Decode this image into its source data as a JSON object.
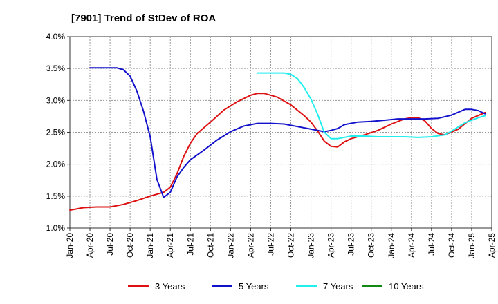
{
  "chart_data": {
    "type": "line",
    "title": "[7901]  Trend of StDev of ROA",
    "xlabel": "",
    "ylabel": "",
    "ylim": [
      1.0,
      4.0
    ],
    "yticks": [
      "1.0%",
      "1.5%",
      "2.0%",
      "2.5%",
      "3.0%",
      "3.5%",
      "4.0%"
    ],
    "xticks": [
      "Jan-20",
      "Apr-20",
      "Jul-20",
      "Oct-20",
      "Jan-21",
      "Apr-21",
      "Jul-21",
      "Oct-21",
      "Jan-22",
      "Apr-22",
      "Jul-22",
      "Oct-22",
      "Jan-23",
      "Apr-23",
      "Jul-23",
      "Oct-23",
      "Jan-24",
      "Apr-24",
      "Jul-24",
      "Oct-24",
      "Jan-25",
      "Apr-25"
    ],
    "grid": true,
    "legend_position": "bottom",
    "series": [
      {
        "name": "3 Years",
        "color": "#dd1111",
        "points": [
          [
            "Jan-20",
            1.28
          ],
          [
            "Mar-20",
            1.32
          ],
          [
            "May-20",
            1.33
          ],
          [
            "Jul-20",
            1.33
          ],
          [
            "Sep-20",
            1.37
          ],
          [
            "Nov-20",
            1.43
          ],
          [
            "Jan-21",
            1.5
          ],
          [
            "Mar-21",
            1.56
          ],
          [
            "Apr-21",
            1.64
          ],
          [
            "May-21",
            1.85
          ],
          [
            "Jun-21",
            2.12
          ],
          [
            "Jul-21",
            2.33
          ],
          [
            "Aug-21",
            2.48
          ],
          [
            "Oct-21",
            2.66
          ],
          [
            "Dec-21",
            2.85
          ],
          [
            "Feb-22",
            2.98
          ],
          [
            "Apr-22",
            3.08
          ],
          [
            "May-22",
            3.11
          ],
          [
            "Jun-22",
            3.11
          ],
          [
            "Aug-22",
            3.05
          ],
          [
            "Oct-22",
            2.93
          ],
          [
            "Dec-22",
            2.76
          ],
          [
            "Jan-23",
            2.66
          ],
          [
            "Feb-23",
            2.52
          ],
          [
            "Mar-23",
            2.36
          ],
          [
            "Apr-23",
            2.28
          ],
          [
            "May-23",
            2.27
          ],
          [
            "Jun-23",
            2.35
          ],
          [
            "Jul-23",
            2.4
          ],
          [
            "Sep-23",
            2.46
          ],
          [
            "Nov-23",
            2.53
          ],
          [
            "Jan-24",
            2.63
          ],
          [
            "Mar-24",
            2.71
          ],
          [
            "Apr-24",
            2.73
          ],
          [
            "May-24",
            2.73
          ],
          [
            "Jun-24",
            2.68
          ],
          [
            "Jul-24",
            2.56
          ],
          [
            "Aug-24",
            2.48
          ],
          [
            "Sep-24",
            2.46
          ],
          [
            "Nov-24",
            2.55
          ],
          [
            "Jan-25",
            2.72
          ],
          [
            "Mar-25",
            2.81
          ]
        ]
      },
      {
        "name": "5 Years",
        "color": "#1111cc",
        "points": [
          [
            "Apr-20",
            3.51
          ],
          [
            "Jun-20",
            3.51
          ],
          [
            "Aug-20",
            3.51
          ],
          [
            "Sep-20",
            3.48
          ],
          [
            "Oct-20",
            3.38
          ],
          [
            "Nov-20",
            3.15
          ],
          [
            "Dec-20",
            2.83
          ],
          [
            "Jan-21",
            2.43
          ],
          [
            "Feb-21",
            1.76
          ],
          [
            "Mar-21",
            1.48
          ],
          [
            "Apr-21",
            1.56
          ],
          [
            "May-21",
            1.8
          ],
          [
            "Jun-21",
            1.95
          ],
          [
            "Jul-21",
            2.07
          ],
          [
            "Sep-21",
            2.22
          ],
          [
            "Nov-21",
            2.38
          ],
          [
            "Jan-22",
            2.51
          ],
          [
            "Mar-22",
            2.6
          ],
          [
            "May-22",
            2.64
          ],
          [
            "Jul-22",
            2.64
          ],
          [
            "Sep-22",
            2.63
          ],
          [
            "Nov-22",
            2.59
          ],
          [
            "Jan-23",
            2.55
          ],
          [
            "Mar-23",
            2.51
          ],
          [
            "Apr-23",
            2.53
          ],
          [
            "May-23",
            2.56
          ],
          [
            "Jun-23",
            2.62
          ],
          [
            "Aug-23",
            2.66
          ],
          [
            "Oct-23",
            2.67
          ],
          [
            "Dec-23",
            2.69
          ],
          [
            "Feb-24",
            2.71
          ],
          [
            "Apr-24",
            2.71
          ],
          [
            "Jun-24",
            2.71
          ],
          [
            "Aug-24",
            2.72
          ],
          [
            "Oct-24",
            2.77
          ],
          [
            "Dec-24",
            2.86
          ],
          [
            "Jan-25",
            2.86
          ],
          [
            "Feb-25",
            2.84
          ],
          [
            "Mar-25",
            2.79
          ]
        ]
      },
      {
        "name": "7 Years",
        "color": "#22eeee",
        "points": [
          [
            "May-22",
            3.43
          ],
          [
            "Jul-22",
            3.43
          ],
          [
            "Sep-22",
            3.43
          ],
          [
            "Oct-22",
            3.41
          ],
          [
            "Nov-22",
            3.34
          ],
          [
            "Dec-22",
            3.2
          ],
          [
            "Jan-23",
            3.02
          ],
          [
            "Feb-23",
            2.78
          ],
          [
            "Mar-23",
            2.5
          ],
          [
            "Apr-23",
            2.4
          ],
          [
            "May-23",
            2.4
          ],
          [
            "Jul-23",
            2.44
          ],
          [
            "Sep-23",
            2.44
          ],
          [
            "Nov-23",
            2.43
          ],
          [
            "Jan-24",
            2.43
          ],
          [
            "Mar-24",
            2.43
          ],
          [
            "May-24",
            2.42
          ],
          [
            "Jul-24",
            2.43
          ],
          [
            "Sep-24",
            2.46
          ],
          [
            "Oct-24",
            2.52
          ],
          [
            "Dec-24",
            2.65
          ],
          [
            "Feb-25",
            2.73
          ],
          [
            "Mar-25",
            2.76
          ]
        ]
      },
      {
        "name": "10 Years",
        "color": "#118811",
        "points": []
      }
    ]
  }
}
